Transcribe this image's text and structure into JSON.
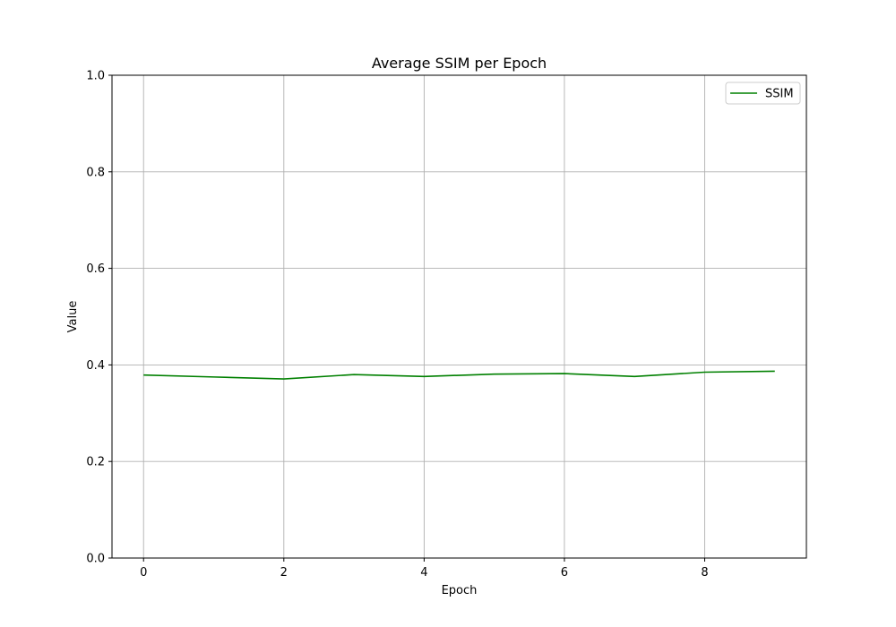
{
  "chart_data": {
    "type": "line",
    "title": "Average SSIM per Epoch",
    "xlabel": "Epoch",
    "ylabel": "Value",
    "xlim": [
      -0.45,
      9.45
    ],
    "ylim": [
      0.0,
      1.0
    ],
    "xticks": [
      0,
      2,
      4,
      6,
      8
    ],
    "xtick_labels": [
      "0",
      "2",
      "4",
      "6",
      "8"
    ],
    "yticks": [
      0.0,
      0.2,
      0.4,
      0.6,
      0.8,
      1.0
    ],
    "ytick_labels": [
      "0.0",
      "0.2",
      "0.4",
      "0.6",
      "0.8",
      "1.0"
    ],
    "grid": true,
    "legend_position": "top-right",
    "x": [
      0,
      1,
      2,
      3,
      4,
      5,
      6,
      7,
      8,
      9
    ],
    "series": [
      {
        "name": "SSIM",
        "color": "#008000",
        "values": [
          0.379,
          0.375,
          0.371,
          0.38,
          0.376,
          0.381,
          0.382,
          0.376,
          0.385,
          0.387
        ]
      }
    ]
  }
}
